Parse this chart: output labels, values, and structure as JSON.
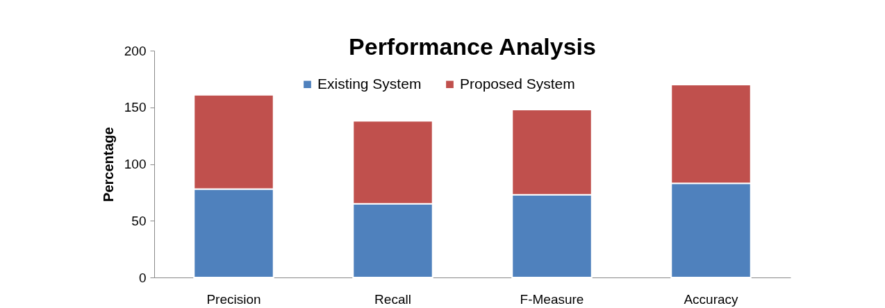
{
  "chart_data": {
    "type": "bar",
    "title": "Performance Analysis",
    "ylabel": "Percentage",
    "categories": [
      "Precision",
      "Recall",
      "F-Measure",
      "Accuracy"
    ],
    "series": [
      {
        "name": "Existing System",
        "color": "#4f81bd",
        "values": [
          78,
          65,
          73,
          83
        ]
      },
      {
        "name": "Proposed System",
        "color": "#c0504d",
        "values": [
          83,
          73,
          75,
          87
        ]
      }
    ],
    "stacked": true,
    "ylim": [
      0,
      200
    ],
    "yticks": [
      0,
      50,
      100,
      150,
      200
    ],
    "grid": false,
    "legend": "top"
  }
}
